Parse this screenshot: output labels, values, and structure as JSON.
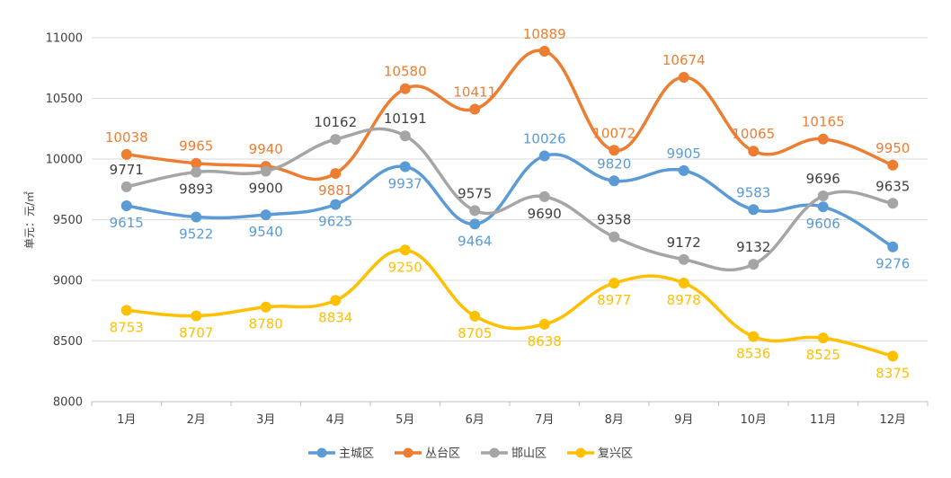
{
  "chart_data": {
    "type": "line",
    "title": "",
    "xlabel": "",
    "ylabel": "单元：元/㎡",
    "ylim": [
      8000,
      11000
    ],
    "yticks": [
      8000,
      8500,
      9000,
      9500,
      10000,
      10500,
      11000
    ],
    "grid": true,
    "legend_position": "bottom",
    "categories": [
      "1月",
      "2月",
      "3月",
      "4月",
      "5月",
      "6月",
      "7月",
      "8月",
      "9月",
      "10月",
      "11月",
      "12月"
    ],
    "series": [
      {
        "name": "主城区",
        "color": "#5B9BD5",
        "values": [
          9615,
          9522,
          9540,
          9625,
          9937,
          9464,
          10026,
          9820,
          9905,
          9583,
          9606,
          9276
        ],
        "label_pos": [
          "below",
          "below",
          "below",
          "below",
          "below",
          "below",
          "above",
          "above",
          "above",
          "above",
          "below",
          "below"
        ]
      },
      {
        "name": "丛台区",
        "color": "#ED7D31",
        "values": [
          10038,
          9965,
          9940,
          9881,
          10580,
          10411,
          10889,
          10072,
          10674,
          10065,
          10165,
          9950
        ],
        "label_pos": [
          "above",
          "above",
          "above",
          "below",
          "above",
          "above",
          "above",
          "above",
          "above",
          "above",
          "above",
          "above"
        ]
      },
      {
        "name": "邯山区",
        "color": "#A5A5A5",
        "values": [
          9771,
          9893,
          9900,
          10162,
          10191,
          9575,
          9690,
          9358,
          9172,
          9132,
          9696,
          9635
        ],
        "label_pos": [
          "above",
          "below",
          "below",
          "above",
          "above",
          "above",
          "below",
          "above",
          "above",
          "above",
          "above",
          "above"
        ]
      },
      {
        "name": "复兴区",
        "color": "#FFC000",
        "values": [
          8753,
          8707,
          8780,
          8834,
          9250,
          8705,
          8638,
          8977,
          8978,
          8536,
          8525,
          8375
        ],
        "label_pos": [
          "below",
          "below",
          "below",
          "below",
          "below",
          "below",
          "below",
          "below",
          "below",
          "below",
          "below",
          "below"
        ]
      }
    ],
    "label_colors": {
      "主城区": "#5B9BD5",
      "丛台区": "#ED7D31",
      "邯山区": "#404040",
      "复兴区": "#FFC000"
    }
  }
}
